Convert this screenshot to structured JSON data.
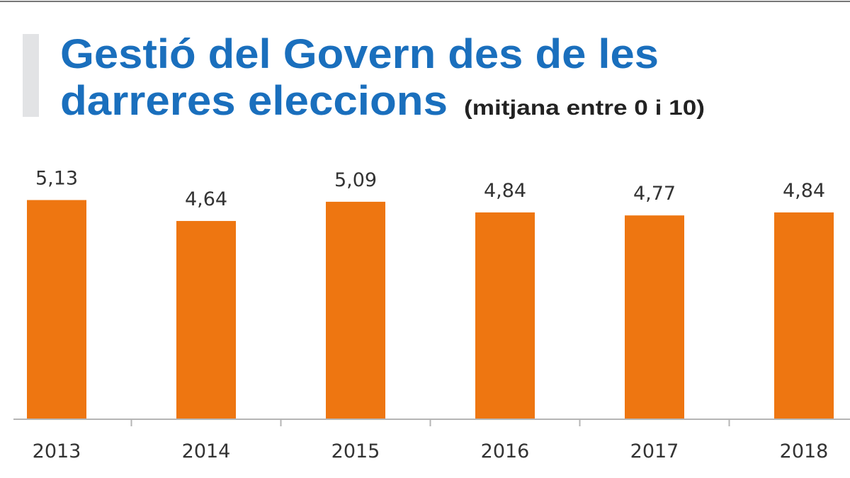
{
  "chart_data": {
    "type": "bar",
    "title": [
      "Gestió del Govern des de les",
      "darreres eleccions"
    ],
    "subtitle": "(mitjana entre 0 i 10)",
    "categories": [
      "2013",
      "2014",
      "2015",
      "2016",
      "2017",
      "2018"
    ],
    "values": [
      5.13,
      4.64,
      5.09,
      4.84,
      4.77,
      4.84
    ],
    "value_labels": [
      "5,13",
      "4,64",
      "5,09",
      "4,84",
      "4,77",
      "4,84"
    ],
    "xlabel": "",
    "ylabel": "",
    "ylim": [
      0,
      6
    ],
    "grid": false,
    "legend": "none",
    "colors": {
      "bar": "#ee7611",
      "title": "#1a6fbd",
      "accent_bar": "#e2e3e5",
      "axis": "#b5b5b5"
    }
  }
}
